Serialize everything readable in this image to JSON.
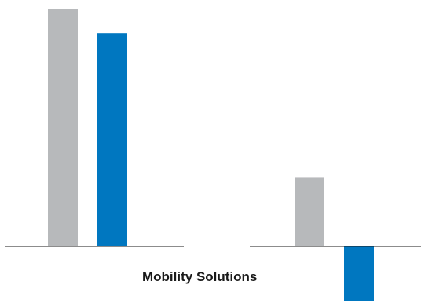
{
  "chart_data": {
    "type": "bar",
    "categories": [
      "",
      "Mobility Solutions"
    ],
    "series": [
      {
        "values": [
          100,
          29
        ],
        "color": "#b7b9bb"
      },
      {
        "values": [
          90,
          -23
        ],
        "color": "#0077c0"
      }
    ],
    "title": "",
    "xlabel": "",
    "ylabel": "",
    "ylim": [
      -23,
      100
    ],
    "grid": false,
    "legend": "none"
  }
}
